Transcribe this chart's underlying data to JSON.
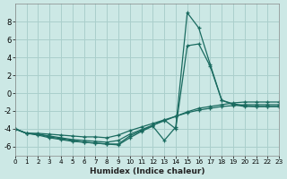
{
  "xlabel": "Humidex (Indice chaleur)",
  "bg_color": "#cce8e5",
  "grid_color": "#aacfcc",
  "line_color": "#1a6b60",
  "xlim": [
    0,
    23
  ],
  "ylim": [
    -7,
    10
  ],
  "xticks": [
    0,
    1,
    2,
    3,
    4,
    5,
    6,
    7,
    8,
    9,
    10,
    11,
    12,
    13,
    14,
    15,
    16,
    17,
    18,
    19,
    20,
    21,
    22,
    23
  ],
  "yticks": [
    -6,
    -4,
    -2,
    0,
    2,
    4,
    6,
    8
  ],
  "series": [
    {
      "x": [
        0,
        1,
        2,
        3,
        4,
        5,
        6,
        7,
        8,
        9,
        10,
        11,
        12,
        13,
        14,
        15,
        16,
        17,
        18,
        19,
        20,
        21,
        22,
        23
      ],
      "y": [
        -4.0,
        -4.5,
        -4.5,
        -4.6,
        -4.7,
        -4.8,
        -4.9,
        -4.9,
        -5.0,
        -4.7,
        -4.2,
        -3.8,
        -3.4,
        -3.0,
        -2.6,
        -2.2,
        -1.9,
        -1.7,
        -1.5,
        -1.4,
        -1.3,
        -1.3,
        -1.3,
        -1.3
      ]
    },
    {
      "x": [
        0,
        1,
        2,
        3,
        4,
        5,
        6,
        7,
        8,
        9,
        10,
        11,
        12,
        13,
        14,
        15,
        16,
        17,
        18,
        19,
        20,
        21,
        22,
        23
      ],
      "y": [
        -4.0,
        -4.5,
        -4.6,
        -4.8,
        -5.0,
        -5.2,
        -5.3,
        -5.4,
        -5.5,
        -5.3,
        -4.6,
        -4.1,
        -3.6,
        -3.1,
        -2.6,
        -2.1,
        -1.7,
        -1.5,
        -1.3,
        -1.1,
        -1.0,
        -1.0,
        -1.0,
        -1.0
      ]
    },
    {
      "x": [
        0,
        1,
        2,
        3,
        4,
        5,
        6,
        7,
        8,
        9,
        10,
        11,
        12,
        13,
        14,
        15,
        16,
        17,
        18,
        19,
        20,
        21,
        22,
        23
      ],
      "y": [
        -4.0,
        -4.5,
        -4.6,
        -4.9,
        -5.1,
        -5.3,
        -5.5,
        -5.6,
        -5.7,
        -5.8,
        -5.0,
        -4.3,
        -3.7,
        -5.3,
        -3.8,
        9.0,
        7.3,
        3.2,
        -0.8,
        -1.3,
        -1.5,
        -1.5,
        -1.5,
        -1.5
      ]
    },
    {
      "x": [
        0,
        1,
        2,
        3,
        4,
        5,
        6,
        7,
        8,
        9,
        10,
        11,
        12,
        13,
        14,
        15,
        16,
        17,
        18,
        19,
        20,
        21,
        22,
        23
      ],
      "y": [
        -4.0,
        -4.5,
        -4.7,
        -5.0,
        -5.2,
        -5.4,
        -5.5,
        -5.6,
        -5.7,
        -5.7,
        -4.8,
        -4.2,
        -3.6,
        -3.0,
        -4.0,
        5.3,
        5.5,
        3.0,
        -0.8,
        -1.2,
        -1.4,
        -1.5,
        -1.5,
        -1.5
      ]
    }
  ]
}
